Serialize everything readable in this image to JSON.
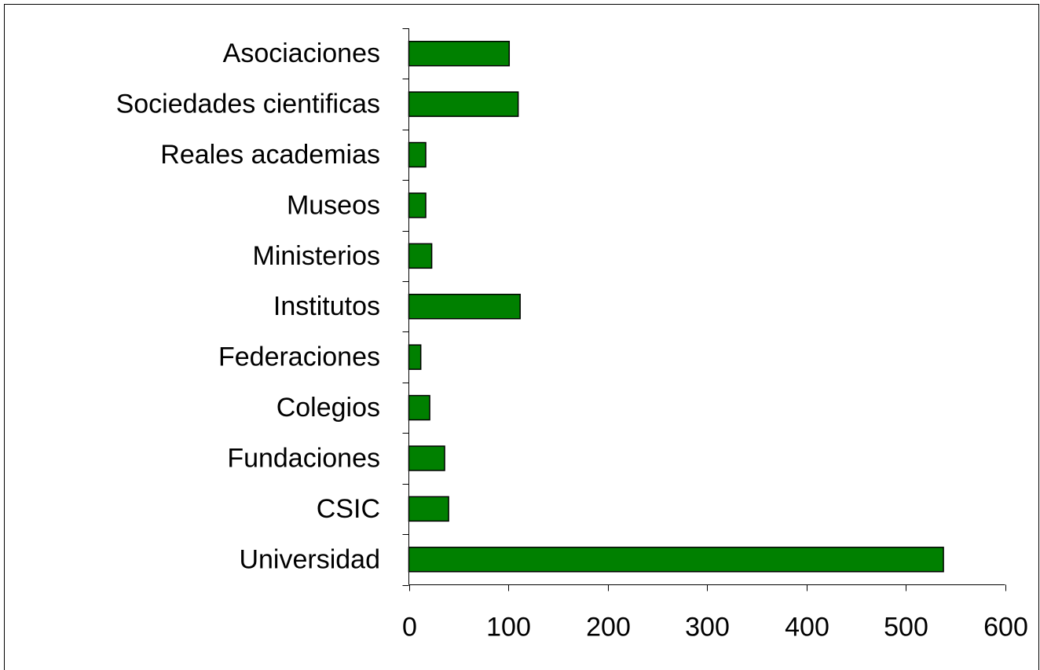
{
  "chart_data": {
    "type": "bar",
    "orientation": "horizontal",
    "categories": [
      "Asociaciones",
      "Sociedades cientificas",
      "Reales academias",
      "Museos",
      "Ministerios",
      "Institutos",
      "Federaciones",
      "Colegios",
      "Fundaciones",
      "CSIC",
      "Universidad"
    ],
    "values": [
      101,
      110,
      17,
      17,
      23,
      112,
      12,
      21,
      36,
      40,
      538
    ],
    "color": "#008000",
    "xlim": [
      0,
      600
    ],
    "xticks": [
      0,
      100,
      200,
      300,
      400,
      500,
      600
    ],
    "grid": false
  }
}
